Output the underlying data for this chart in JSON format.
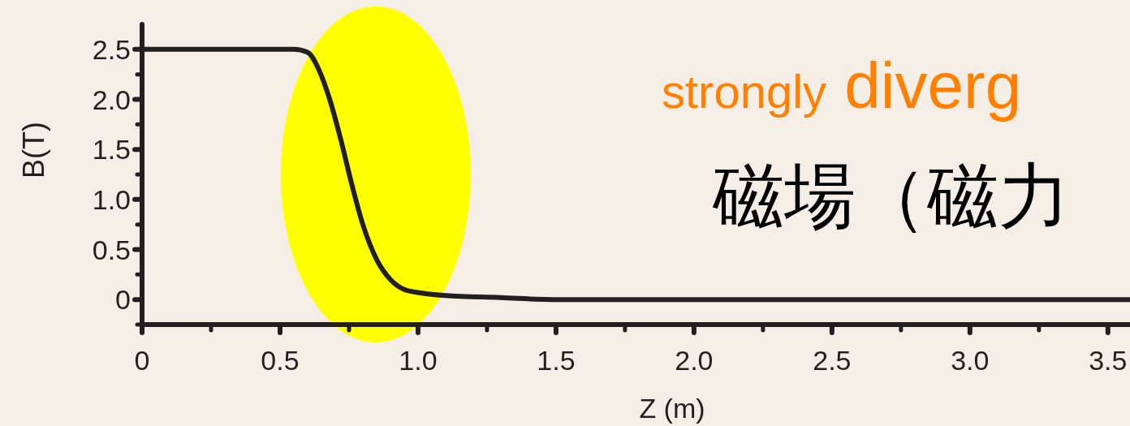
{
  "chart_data": {
    "type": "line",
    "xlabel": "Z (m)",
    "ylabel": "B(T)",
    "annotations": [
      "strongly diverg",
      "磁場（磁力"
    ],
    "x": [
      0,
      0.3,
      0.55,
      0.6,
      0.64,
      0.68,
      0.72,
      0.76,
      0.8,
      0.85,
      0.9,
      0.95,
      1.0,
      1.1,
      1.3,
      1.5,
      2.0,
      3.58
    ],
    "series": [
      {
        "color": "#231f20",
        "values": [
          2.5,
          2.5,
          2.5,
          2.47,
          2.3,
          2.0,
          1.6,
          1.15,
          0.75,
          0.4,
          0.2,
          0.1,
          0.07,
          0.04,
          0.02,
          0,
          0,
          0
        ]
      }
    ],
    "xlim": [
      0,
      3.58
    ],
    "ylim": [
      -0.25,
      2.75
    ],
    "xticks": [
      0,
      {
        "value": 0.25,
        "label": null
      },
      0.5,
      {
        "value": 0.75,
        "label": null
      },
      {
        "value": 1,
        "label": "1.0"
      },
      {
        "value": 1.25,
        "label": null
      },
      1.5,
      {
        "value": 1.75,
        "label": null
      },
      {
        "value": 2,
        "label": "2.0"
      },
      {
        "value": 2.25,
        "label": null
      },
      2.5,
      {
        "value": 2.75,
        "label": null
      },
      {
        "value": 3,
        "label": "3.0"
      },
      {
        "value": 3.25,
        "label": null
      },
      3.5
    ],
    "yticks": [
      {
        "value": -0.25,
        "label": null
      },
      0,
      {
        "value": 0.25,
        "label": null
      },
      0.5,
      {
        "value": 0.75,
        "label": null
      },
      {
        "value": 1,
        "label": "1.0"
      },
      {
        "value": 1.25,
        "label": null
      },
      1.5,
      {
        "value": 1.75,
        "label": null
      },
      {
        "value": 2,
        "label": "2.0"
      },
      {
        "value": 2.25,
        "label": null
      },
      2.5
    ],
    "grid": false,
    "marker": "none",
    "line_style": "solid"
  }
}
